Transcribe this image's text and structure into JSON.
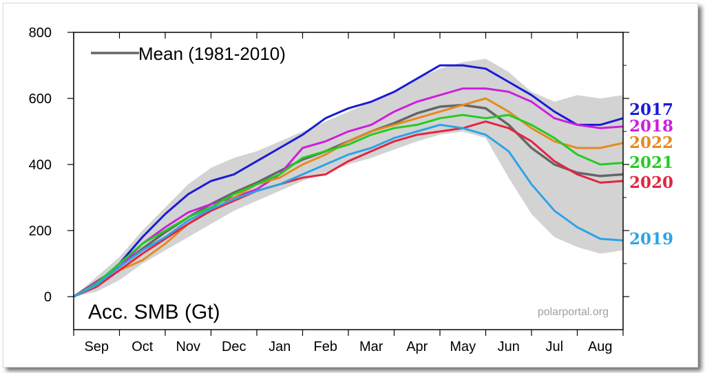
{
  "chart_data": {
    "type": "line",
    "legend_label": "Mean (1981-2010)",
    "unit_label": "Acc. SMB (Gt)",
    "source": "polarportal.org",
    "xlabel": "",
    "ylabel": "",
    "ylim": [
      -100,
      800
    ],
    "y_ticks": [
      0,
      200,
      400,
      600,
      800
    ],
    "y_tick_labels": [
      "0",
      "200",
      "400",
      "600",
      "800"
    ],
    "months": [
      "Sep",
      "Oct",
      "Nov",
      "Dec",
      "Jan",
      "Feb",
      "Mar",
      "Apr",
      "May",
      "Jun",
      "Jul",
      "Aug"
    ],
    "x_unit": "months since 1 Sep",
    "xlim": [
      0,
      12
    ],
    "grid": false,
    "legend_position": "top-left",
    "band": {
      "name": "",
      "color": "#d3d3d3",
      "x": [
        0,
        0.5,
        1,
        1.5,
        2,
        2.5,
        3,
        3.5,
        4,
        4.5,
        5,
        5.5,
        6,
        6.5,
        7,
        7.5,
        8,
        8.5,
        9,
        9.5,
        10,
        10.5,
        11,
        11.5,
        12
      ],
      "upper": [
        0,
        60,
        120,
        200,
        270,
        340,
        390,
        420,
        440,
        470,
        500,
        530,
        560,
        590,
        620,
        660,
        690,
        710,
        720,
        680,
        620,
        590,
        610,
        600,
        610
      ],
      "lower": [
        0,
        15,
        50,
        100,
        140,
        180,
        220,
        260,
        290,
        320,
        350,
        375,
        400,
        420,
        445,
        470,
        490,
        500,
        480,
        360,
        250,
        180,
        150,
        130,
        140
      ]
    },
    "series": [
      {
        "name": "Mean (1981-2010)",
        "label": "",
        "color": "#666666",
        "x": [
          0,
          0.5,
          1,
          1.5,
          2,
          2.5,
          3,
          3.5,
          4,
          4.5,
          5,
          5.5,
          6,
          6.5,
          7,
          7.5,
          8,
          8.5,
          9,
          9.5,
          10,
          10.5,
          11,
          11.5,
          12
        ],
        "y": [
          0,
          45,
          90,
          145,
          195,
          240,
          280,
          315,
          345,
          380,
          415,
          440,
          470,
          500,
          525,
          555,
          575,
          580,
          570,
          520,
          450,
          400,
          375,
          365,
          370
        ]
      },
      {
        "name": "2017",
        "label": "2017",
        "color": "#1a1ad6",
        "x": [
          0,
          0.5,
          1,
          1.5,
          2,
          2.5,
          3,
          3.5,
          4,
          4.5,
          5,
          5.5,
          6,
          6.5,
          7,
          7.5,
          8,
          8.5,
          9,
          9.5,
          10,
          10.5,
          11,
          11.5,
          12
        ],
        "y": [
          0,
          40,
          100,
          180,
          250,
          310,
          350,
          370,
          410,
          450,
          490,
          540,
          570,
          590,
          620,
          660,
          700,
          700,
          690,
          650,
          610,
          560,
          520,
          520,
          540
        ]
      },
      {
        "name": "2018",
        "label": "2018",
        "color": "#cc1fdb",
        "x": [
          0,
          0.5,
          1,
          1.5,
          2,
          2.5,
          3,
          3.5,
          4,
          4.5,
          5,
          5.5,
          6,
          6.5,
          7,
          7.5,
          8,
          8.5,
          9,
          9.5,
          10,
          10.5,
          11,
          11.5,
          12
        ],
        "y": [
          0,
          45,
          90,
          160,
          210,
          255,
          280,
          300,
          325,
          370,
          450,
          470,
          500,
          520,
          560,
          590,
          610,
          630,
          630,
          620,
          590,
          540,
          520,
          510,
          515
        ]
      },
      {
        "name": "2022",
        "label": "2022",
        "color": "#e58a1f",
        "x": [
          0,
          0.5,
          1,
          1.5,
          2,
          2.5,
          3,
          3.5,
          4,
          4.5,
          5,
          5.5,
          6,
          6.5,
          7,
          7.5,
          8,
          8.5,
          9,
          9.5,
          10,
          10.5,
          11,
          11.5,
          12
        ],
        "y": [
          0,
          30,
          80,
          110,
          160,
          220,
          260,
          300,
          340,
          360,
          400,
          430,
          470,
          500,
          520,
          540,
          560,
          580,
          600,
          560,
          510,
          470,
          450,
          450,
          465
        ]
      },
      {
        "name": "2021",
        "label": "2021",
        "color": "#22cc22",
        "x": [
          0,
          0.5,
          1,
          1.5,
          2,
          2.5,
          3,
          3.5,
          4,
          4.5,
          5,
          5.5,
          6,
          6.5,
          7,
          7.5,
          8,
          8.5,
          9,
          9.5,
          10,
          10.5,
          11,
          11.5,
          12
        ],
        "y": [
          0,
          40,
          100,
          160,
          200,
          240,
          270,
          310,
          340,
          370,
          420,
          440,
          460,
          490,
          510,
          520,
          540,
          550,
          540,
          550,
          520,
          480,
          430,
          400,
          405
        ]
      },
      {
        "name": "2020",
        "label": "2020",
        "color": "#e32440",
        "x": [
          0,
          0.5,
          1,
          1.5,
          2,
          2.5,
          3,
          3.5,
          4,
          4.5,
          5,
          5.5,
          6,
          6.5,
          7,
          7.5,
          8,
          8.5,
          9,
          9.5,
          10,
          10.5,
          11,
          11.5,
          12
        ],
        "y": [
          0,
          30,
          80,
          130,
          175,
          220,
          260,
          290,
          320,
          340,
          360,
          370,
          410,
          440,
          470,
          490,
          500,
          510,
          530,
          510,
          470,
          410,
          370,
          345,
          350
        ]
      },
      {
        "name": "2019",
        "label": "2019",
        "color": "#2ca3e6",
        "x": [
          0,
          0.5,
          1,
          1.5,
          2,
          2.5,
          3,
          3.5,
          4,
          4.5,
          5,
          5.5,
          6,
          6.5,
          7,
          7.5,
          8,
          8.5,
          9,
          9.5,
          10,
          10.5,
          11,
          11.5,
          12
        ],
        "y": [
          0,
          35,
          90,
          140,
          180,
          230,
          265,
          295,
          320,
          340,
          370,
          400,
          430,
          450,
          480,
          500,
          520,
          510,
          490,
          440,
          340,
          260,
          210,
          175,
          170
        ]
      }
    ],
    "series_label_colors": {
      "2017": "#1a1ad6",
      "2018": "#cc1fdb",
      "2022": "#e58a1f",
      "2021": "#22cc22",
      "2020": "#e32440",
      "2019": "#2ca3e6"
    }
  }
}
